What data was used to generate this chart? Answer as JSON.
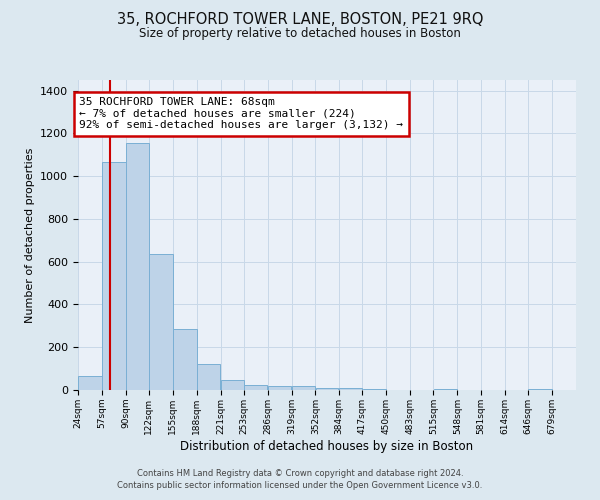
{
  "title": "35, ROCHFORD TOWER LANE, BOSTON, PE21 9RQ",
  "subtitle": "Size of property relative to detached houses in Boston",
  "xlabel": "Distribution of detached houses by size in Boston",
  "ylabel": "Number of detached properties",
  "bar_color": "#bed3e8",
  "bar_edge_color": "#7aafd4",
  "bin_labels": [
    "24sqm",
    "57sqm",
    "90sqm",
    "122sqm",
    "155sqm",
    "188sqm",
    "221sqm",
    "253sqm",
    "286sqm",
    "319sqm",
    "352sqm",
    "384sqm",
    "417sqm",
    "450sqm",
    "483sqm",
    "515sqm",
    "548sqm",
    "581sqm",
    "614sqm",
    "646sqm",
    "679sqm"
  ],
  "bin_edges": [
    24,
    57,
    90,
    122,
    155,
    188,
    221,
    253,
    286,
    319,
    352,
    384,
    417,
    450,
    483,
    515,
    548,
    581,
    614,
    646,
    679,
    712
  ],
  "bar_heights": [
    65,
    1065,
    1155,
    635,
    285,
    120,
    48,
    25,
    20,
    20,
    8,
    8,
    5,
    0,
    0,
    5,
    0,
    0,
    0,
    5,
    0
  ],
  "ylim": [
    0,
    1450
  ],
  "yticks": [
    0,
    200,
    400,
    600,
    800,
    1000,
    1200,
    1400
  ],
  "property_size": 68,
  "red_line_color": "#cc0000",
  "annotation_text": "35 ROCHFORD TOWER LANE: 68sqm\n← 7% of detached houses are smaller (224)\n92% of semi-detached houses are larger (3,132) →",
  "annotation_box_color": "#ffffff",
  "annotation_box_edge": "#cc0000",
  "grid_color": "#c8d8e8",
  "background_color": "#dce8f0",
  "plot_bg_color": "#eaf0f8",
  "footer_line1": "Contains HM Land Registry data © Crown copyright and database right 2024.",
  "footer_line2": "Contains public sector information licensed under the Open Government Licence v3.0."
}
